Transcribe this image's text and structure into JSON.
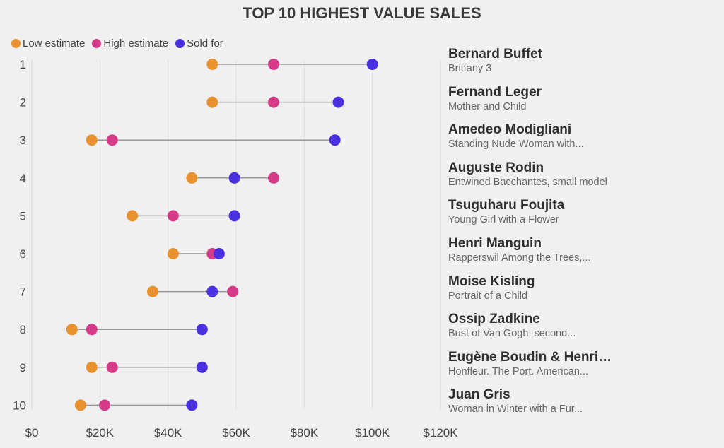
{
  "chart_data": {
    "type": "dot-range",
    "title": "TOP 10 HIGHEST VALUE SALES",
    "legend": [
      {
        "name": "Low estimate",
        "color": "#e8912f"
      },
      {
        "name": "High estimate",
        "color": "#d63b8a"
      },
      {
        "name": "Sold for",
        "color": "#4a30e0"
      }
    ],
    "xlim": [
      0,
      120000
    ],
    "xticks": [
      0,
      20000,
      40000,
      60000,
      80000,
      100000,
      120000
    ],
    "xtick_labels": [
      "$0",
      "$20K",
      "$40K",
      "$60K",
      "$80K",
      "$100K",
      "$120K"
    ],
    "rows": [
      {
        "rank": "1",
        "artist": "Bernard Buffet",
        "title": "Brittany 3",
        "low": 53000,
        "high": 71000,
        "sold": 100000
      },
      {
        "rank": "2",
        "artist": "Fernand Leger",
        "title": "Mother and Child",
        "low": 53000,
        "high": 71000,
        "sold": 90000
      },
      {
        "rank": "3",
        "artist": "Amedeo Modigliani",
        "title": "Standing Nude Woman with...",
        "low": 17600,
        "high": 23600,
        "sold": 89000
      },
      {
        "rank": "4",
        "artist": "Auguste Rodin",
        "title": "Entwined Bacchantes, small model",
        "low": 47000,
        "high": 71000,
        "sold": 59500
      },
      {
        "rank": "5",
        "artist": "Tsuguharu Foujita",
        "title": "Young Girl with a Flower",
        "low": 29500,
        "high": 41500,
        "sold": 59500
      },
      {
        "rank": "6",
        "artist": "Henri Manguin",
        "title": "Rapperswil Among the Trees,...",
        "low": 41500,
        "high": 53000,
        "sold": 55000
      },
      {
        "rank": "7",
        "artist": "Moise Kisling",
        "title": "Portrait of a Child",
        "low": 35500,
        "high": 59000,
        "sold": 53000
      },
      {
        "rank": "8",
        "artist": "Ossip Zadkine",
        "title": "Bust of Van Gogh, second...",
        "low": 11800,
        "high": 17600,
        "sold": 50000
      },
      {
        "rank": "9",
        "artist": "Eugène Boudin & Henri…",
        "title": "Honfleur. The Port. American...",
        "low": 17600,
        "high": 23600,
        "sold": 50000
      },
      {
        "rank": "10",
        "artist": "Juan Gris",
        "title": "Woman in Winter with a Fur...",
        "low": 14300,
        "high": 21400,
        "sold": 47000
      }
    ]
  }
}
